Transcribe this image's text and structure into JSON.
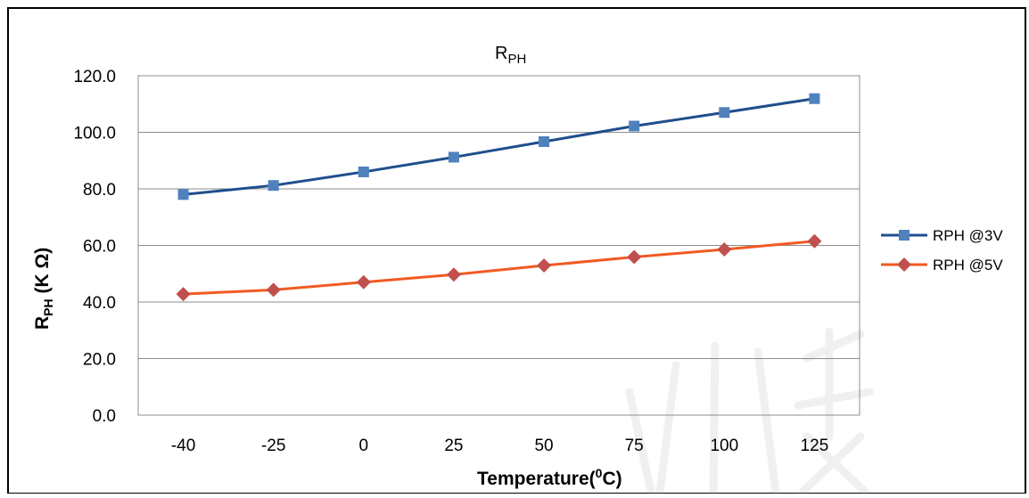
{
  "chart_data": {
    "type": "line",
    "title": "R",
    "title_sub": "PH",
    "xlabel": "Temperature(",
    "xlabel_sup": "0",
    "xlabel_end": "C)",
    "ylabel": "R",
    "ylabel_sub": "PH",
    "ylabel_end": " (K Ω)",
    "categories": [
      "-40",
      "-25",
      "0",
      "25",
      "50",
      "75",
      "100",
      "125"
    ],
    "yticks": [
      "0.0",
      "20.0",
      "40.0",
      "60.0",
      "80.0",
      "100.0",
      "120.0"
    ],
    "ylim": [
      0,
      120
    ],
    "grid": true,
    "legend_position": "right",
    "series": [
      {
        "name": "RPH @3V",
        "marker": "square",
        "line_color": "#1F4E8C",
        "marker_color": "#4F81BD",
        "values": [
          78.0,
          81.2,
          86.0,
          91.2,
          96.7,
          102.2,
          107.0,
          111.9
        ]
      },
      {
        "name": "RPH @5V",
        "marker": "diamond",
        "line_color": "#F15A22",
        "marker_color": "#C0504D",
        "values": [
          42.8,
          44.3,
          47.0,
          49.7,
          52.9,
          55.9,
          58.6,
          61.5
        ]
      }
    ]
  },
  "watermark": "科技"
}
